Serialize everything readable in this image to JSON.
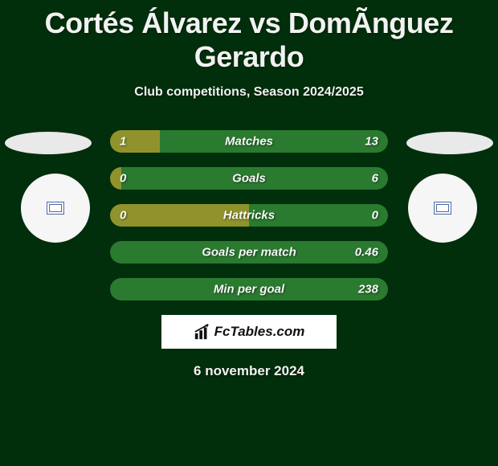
{
  "title": "Cortés Álvarez vs DomÃ­nguez Gerardo",
  "subtitle": "Club competitions, Season 2024/2025",
  "date": "6 november 2024",
  "brand": "FcTables.com",
  "colors": {
    "left": "#90932b",
    "right": "#2a7a30",
    "background": "#012e0b",
    "oval": "#e9e9e9",
    "circle": "#f6f6f6",
    "text": "#f2f2f2",
    "brand_bg": "#ffffff"
  },
  "bars": [
    {
      "label": "Matches",
      "left_val": "1",
      "right_val": "13",
      "left_pct": 18
    },
    {
      "label": "Goals",
      "left_val": "0",
      "right_val": "6",
      "left_pct": 4
    },
    {
      "label": "Hattricks",
      "left_val": "0",
      "right_val": "0",
      "left_pct": 50
    },
    {
      "label": "Goals per match",
      "left_val": "",
      "right_val": "0.46",
      "left_pct": 0
    },
    {
      "label": "Min per goal",
      "left_val": "",
      "right_val": "238",
      "left_pct": 0
    }
  ]
}
